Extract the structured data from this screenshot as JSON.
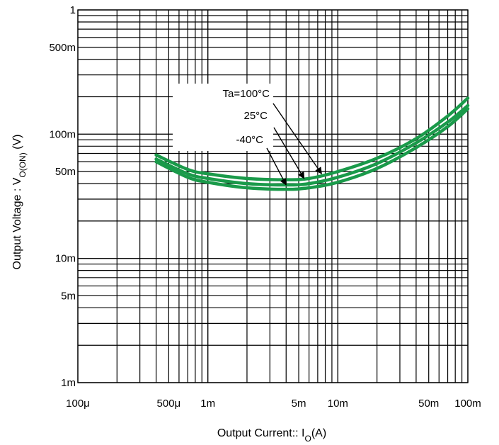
{
  "chart_data": {
    "type": "line",
    "title": "",
    "xlabel": "Output Current:: I",
    "xlabel_sub": "O",
    "xlabel_suffix": "(A)",
    "ylabel": "Output Voltage : V",
    "ylabel_sub": "O(ON)",
    "ylabel_suffix": " (V)",
    "x_scale": "log",
    "y_scale": "log",
    "xlim": [
      0.0001,
      0.1
    ],
    "ylim": [
      0.001,
      1
    ],
    "grid": true,
    "x_ticks": [
      {
        "value": 0.0001,
        "label": "100μ"
      },
      {
        "value": 0.0005,
        "label": "500μ"
      },
      {
        "value": 0.001,
        "label": "1m"
      },
      {
        "value": 0.005,
        "label": "5m"
      },
      {
        "value": 0.01,
        "label": "10m"
      },
      {
        "value": 0.05,
        "label": "50m"
      },
      {
        "value": 0.1,
        "label": "100m"
      }
    ],
    "y_ticks": [
      {
        "value": 0.001,
        "label": "1m"
      },
      {
        "value": 0.005,
        "label": "5m"
      },
      {
        "value": 0.01,
        "label": "10m"
      },
      {
        "value": 0.05,
        "label": "50m"
      },
      {
        "value": 0.1,
        "label": "100m"
      },
      {
        "value": 0.5,
        "label": "500m"
      },
      {
        "value": 1,
        "label": "1"
      }
    ],
    "series_color": "#1a9a4a",
    "series": [
      {
        "name": "Ta=100°C",
        "x": [
          0.0004,
          0.0007,
          0.001,
          0.002,
          0.004,
          0.006,
          0.01,
          0.02,
          0.04,
          0.07,
          0.1
        ],
        "y": [
          0.068,
          0.052,
          0.048,
          0.044,
          0.043,
          0.044,
          0.05,
          0.064,
          0.092,
          0.14,
          0.195
        ]
      },
      {
        "name": "25°C",
        "x": [
          0.0004,
          0.0007,
          0.001,
          0.002,
          0.004,
          0.006,
          0.01,
          0.02,
          0.04,
          0.07,
          0.1
        ],
        "y": [
          0.063,
          0.048,
          0.044,
          0.04,
          0.039,
          0.04,
          0.045,
          0.058,
          0.085,
          0.125,
          0.17
        ]
      },
      {
        "name": "-40°C",
        "x": [
          0.0004,
          0.0007,
          0.001,
          0.002,
          0.004,
          0.006,
          0.01,
          0.02,
          0.04,
          0.07,
          0.1
        ],
        "y": [
          0.06,
          0.045,
          0.041,
          0.037,
          0.036,
          0.037,
          0.041,
          0.053,
          0.078,
          0.115,
          0.16
        ]
      }
    ],
    "annotations": [
      {
        "text": "Ta=100°C",
        "target": "Ta=100°C",
        "point": [
          0.0075,
          0.048
        ]
      },
      {
        "text": "25°C",
        "target": "25°C",
        "point": [
          0.0055,
          0.044
        ]
      },
      {
        "text": "-40°C",
        "target": "-40°C",
        "point": [
          0.004,
          0.039
        ]
      }
    ]
  }
}
